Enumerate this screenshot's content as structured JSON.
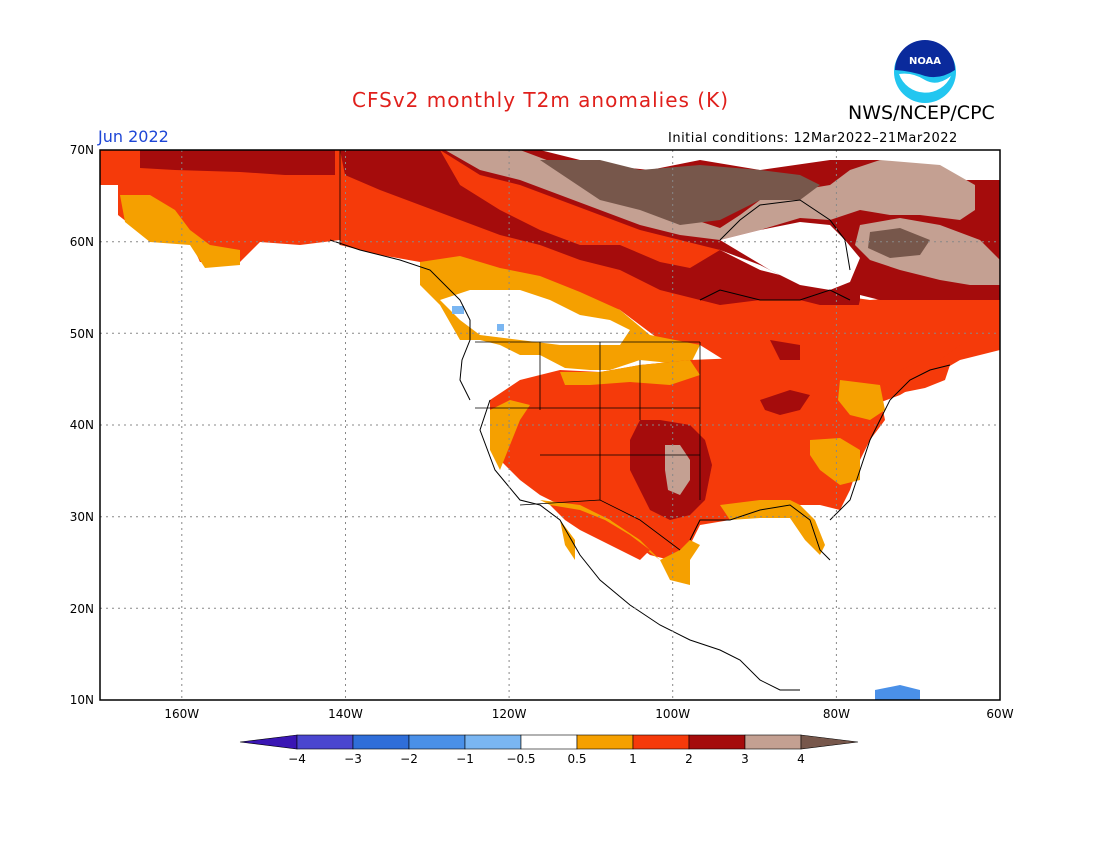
{
  "header": {
    "title": "CFSv2 monthly T2m anomalies (K)",
    "organization": "NWS/NCEP/CPC",
    "logo_text": "NOAA",
    "month_label": "Jun 2022",
    "initial_conditions": "Initial conditions: 12Mar2022–21Mar2022"
  },
  "map": {
    "lat_labels": [
      "70N",
      "60N",
      "50N",
      "40N",
      "30N",
      "20N",
      "10N"
    ],
    "lon_labels": [
      "160W",
      "140W",
      "120W",
      "100W",
      "80W",
      "60W"
    ],
    "lat_range": [
      10,
      70
    ],
    "lon_range": [
      -170,
      -60
    ],
    "grid": "dotted"
  },
  "legend": {
    "tick_labels": [
      "−4",
      "−3",
      "−2",
      "−1",
      "−0.5",
      "0.5",
      "1",
      "2",
      "3",
      "4"
    ],
    "colors": [
      "#3a16b4",
      "#4a46cf",
      "#2f6ed9",
      "#4a90e8",
      "#7ab6f2",
      "#ffffff",
      "#f5a000",
      "#f53a0a",
      "#a50c0c",
      "#c4a092",
      "#77574b"
    ],
    "units": "K"
  }
}
